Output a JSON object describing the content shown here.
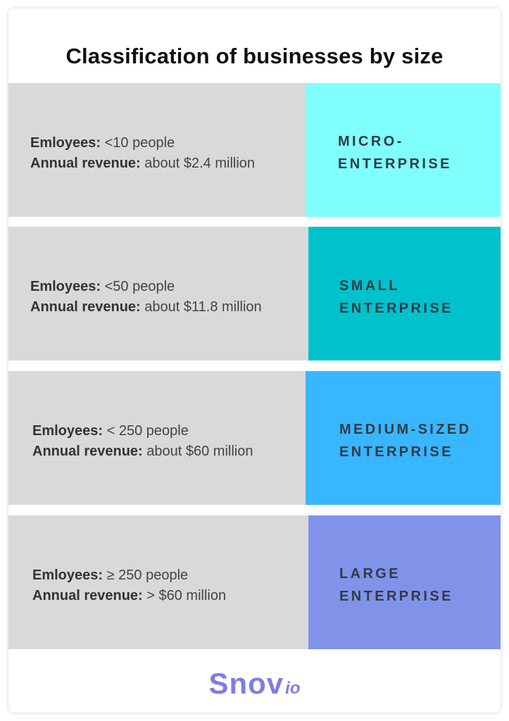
{
  "title": "Classification of businesses by size",
  "rows": [
    {
      "employees_label": "Emloyees:",
      "employees_value": "<10 people",
      "revenue_label": "Annual revenue:",
      "revenue_value": "about $2.4 million",
      "name": "MICRO-\nENTERPRISE",
      "color": "#80ffff"
    },
    {
      "employees_label": "Emloyees:",
      "employees_value": "<50 people",
      "revenue_label": "Annual revenue:",
      "revenue_value": "about $11.8 million",
      "name": "SMALL\nENTERPRISE",
      "color": "#00c2cc"
    },
    {
      "employees_label": "Emloyees:",
      "employees_value": "< 250 people",
      "revenue_label": "Annual revenue:",
      "revenue_value": "about $60 million",
      "name": "MEDIUM-SIZED\nENTERPRISE",
      "color": "#38b6ff"
    },
    {
      "employees_label": "Emloyees:",
      "employees_value": "≥ 250 people",
      "revenue_label": "Annual revenue:",
      "revenue_value": "> $60 million",
      "name": "LARGE\nENTERPRISE",
      "color": "#8093e9"
    }
  ],
  "logo": {
    "main": "Snov",
    "sub": "io",
    "color": "#7f7ee0"
  }
}
